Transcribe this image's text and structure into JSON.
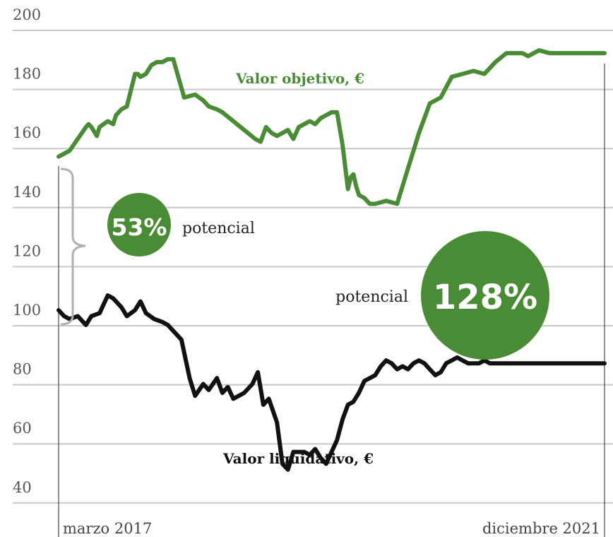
{
  "chart_data": {
    "type": "line",
    "y_ticks": [
      "200",
      "180",
      "160",
      "140",
      "120",
      "100",
      "80",
      "60",
      "40"
    ],
    "ylim": [
      35,
      200
    ],
    "x_start_label": "marzo 2017",
    "x_end_label": "diciembre 2021",
    "grid": true,
    "colors": {
      "target": "#4a8c35",
      "nav": "#111111",
      "bubble": "#4a8c35",
      "grid": "#c8c8c8",
      "bracket": "#b0b0b0"
    },
    "series": [
      {
        "name": "Valor objetivo, €",
        "x": [
          0.0,
          0.02,
          0.035,
          0.05,
          0.055,
          0.06,
          0.07,
          0.075,
          0.09,
          0.1,
          0.105,
          0.115,
          0.125,
          0.14,
          0.145,
          0.15,
          0.16,
          0.17,
          0.18,
          0.19,
          0.2,
          0.21,
          0.23,
          0.25,
          0.265,
          0.275,
          0.29,
          0.3,
          0.32,
          0.34,
          0.36,
          0.37,
          0.38,
          0.39,
          0.4,
          0.41,
          0.42,
          0.43,
          0.44,
          0.45,
          0.46,
          0.47,
          0.48,
          0.5,
          0.51,
          0.52,
          0.53,
          0.535,
          0.54,
          0.545,
          0.55,
          0.56,
          0.565,
          0.57,
          0.58,
          0.6,
          0.62,
          0.64,
          0.65,
          0.66,
          0.67,
          0.68,
          0.7,
          0.72,
          0.74,
          0.76,
          0.78,
          0.8,
          0.82,
          0.84,
          0.85,
          0.86,
          0.88,
          0.9,
          0.92,
          0.94,
          0.96,
          0.98,
          1.0
        ],
        "values": [
          152,
          154,
          158,
          162,
          163,
          162,
          159,
          162,
          164,
          163,
          166,
          168,
          169,
          180,
          180,
          179,
          180,
          183,
          184,
          184,
          185,
          185,
          172,
          173,
          171,
          169,
          168,
          167,
          164,
          161,
          158,
          157,
          162,
          160,
          159,
          160,
          161,
          158,
          162,
          163,
          164,
          163,
          165,
          167,
          167,
          156,
          141,
          145,
          146,
          142,
          139,
          138,
          137,
          136,
          136,
          137,
          136,
          148,
          154,
          160,
          165,
          170,
          172,
          179,
          180,
          181,
          180,
          184,
          187,
          187,
          187,
          186,
          188,
          187,
          187,
          187,
          187,
          187,
          187
        ]
      },
      {
        "name": "Valor liquidativo, €",
        "x": [
          0.0,
          0.01,
          0.02,
          0.035,
          0.05,
          0.06,
          0.075,
          0.09,
          0.1,
          0.115,
          0.125,
          0.14,
          0.15,
          0.16,
          0.175,
          0.19,
          0.2,
          0.215,
          0.225,
          0.24,
          0.25,
          0.265,
          0.275,
          0.29,
          0.3,
          0.31,
          0.32,
          0.34,
          0.355,
          0.365,
          0.375,
          0.385,
          0.4,
          0.41,
          0.42,
          0.43,
          0.45,
          0.46,
          0.47,
          0.48,
          0.49,
          0.5,
          0.51,
          0.52,
          0.53,
          0.54,
          0.55,
          0.56,
          0.57,
          0.58,
          0.59,
          0.6,
          0.61,
          0.62,
          0.63,
          0.64,
          0.65,
          0.66,
          0.67,
          0.68,
          0.69,
          0.7,
          0.71,
          0.72,
          0.73,
          0.74,
          0.75,
          0.76,
          0.77,
          0.78,
          0.79,
          0.8,
          0.81,
          0.82,
          0.83,
          0.84,
          0.85,
          0.86,
          0.87,
          0.88,
          0.89,
          0.9,
          0.91,
          0.92,
          0.93,
          0.94,
          0.95,
          0.96,
          0.97,
          0.98,
          0.99,
          1.0
        ],
        "values": [
          100,
          98,
          97,
          98,
          95,
          98,
          99,
          105,
          104,
          101,
          98,
          100,
          103,
          99,
          97,
          96,
          95,
          92,
          90,
          77,
          71,
          75,
          73,
          77,
          72,
          74,
          70,
          72,
          75,
          79,
          68,
          70,
          62,
          48,
          46,
          52,
          52,
          51,
          53,
          50,
          48,
          52,
          56,
          63,
          68,
          69,
          72,
          76,
          77,
          78,
          81,
          83,
          82,
          80,
          81,
          80,
          82,
          83,
          82,
          80,
          78,
          79,
          82,
          83,
          84,
          83,
          82,
          82,
          82,
          83,
          82,
          82,
          82,
          82,
          82,
          82,
          82,
          82,
          82,
          82,
          82,
          82,
          82,
          82,
          82,
          82,
          82,
          82,
          82,
          82,
          82,
          82
        ]
      }
    ],
    "annotations": {
      "potential_small": {
        "pct": "53%",
        "word": "potencial"
      },
      "potential_large": {
        "pct": "128%",
        "word": "potencial"
      }
    }
  }
}
